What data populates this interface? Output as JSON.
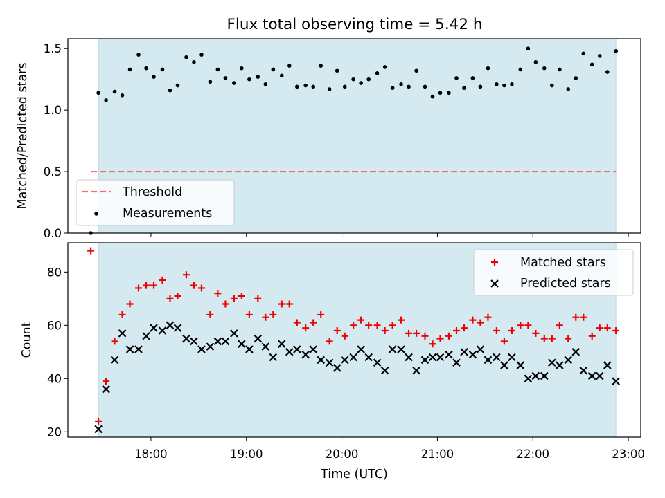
{
  "colors": {
    "shade": "#d4eaf0",
    "threshold": "#f07070",
    "measurement": "#000000",
    "matched": "#ee0000",
    "predicted": "#000000"
  },
  "chart_data": [
    {
      "type": "scatter",
      "title": "Flux total observing time = 5.42 h",
      "xlabel": "",
      "ylabel": "Matched/Predicted stars",
      "xlim": [
        17.13,
        23.13
      ],
      "ylim": [
        0,
        1.58
      ],
      "yticks": [
        0.0,
        0.5,
        1.0,
        1.5
      ],
      "ytick_labels": [
        "0.0",
        "0.5",
        "1.0",
        "1.5"
      ],
      "shaded_span": [
        17.45,
        22.87
      ],
      "threshold": {
        "name": "Threshold",
        "value": 0.5,
        "x_start": 17.37,
        "x_end": 22.87
      },
      "legend": {
        "position": "lower-left",
        "entries": [
          "Threshold",
          "Measurements"
        ]
      },
      "series": [
        {
          "name": "Measurements",
          "x": [
            17.37,
            17.45,
            17.53,
            17.62,
            17.7,
            17.78,
            17.87,
            17.95,
            18.03,
            18.12,
            18.2,
            18.28,
            18.37,
            18.45,
            18.53,
            18.62,
            18.7,
            18.78,
            18.87,
            18.95,
            19.03,
            19.12,
            19.2,
            19.28,
            19.37,
            19.45,
            19.53,
            19.62,
            19.7,
            19.78,
            19.87,
            19.95,
            20.03,
            20.12,
            20.2,
            20.28,
            20.37,
            20.45,
            20.53,
            20.62,
            20.7,
            20.78,
            20.87,
            20.95,
            21.03,
            21.12,
            21.2,
            21.28,
            21.37,
            21.45,
            21.53,
            21.62,
            21.7,
            21.78,
            21.87,
            21.95,
            22.03,
            22.12,
            22.2,
            22.28,
            22.37,
            22.45,
            22.53,
            22.62,
            22.7,
            22.78,
            22.87
          ],
          "y": [
            0.0,
            1.14,
            1.08,
            1.15,
            1.12,
            1.33,
            1.45,
            1.34,
            1.27,
            1.33,
            1.16,
            1.2,
            1.43,
            1.39,
            1.45,
            1.23,
            1.33,
            1.26,
            1.22,
            1.34,
            1.25,
            1.27,
            1.21,
            1.33,
            1.28,
            1.36,
            1.19,
            1.2,
            1.19,
            1.36,
            1.17,
            1.32,
            1.19,
            1.25,
            1.22,
            1.25,
            1.3,
            1.35,
            1.18,
            1.21,
            1.19,
            1.32,
            1.19,
            1.11,
            1.14,
            1.14,
            1.26,
            1.18,
            1.26,
            1.19,
            1.34,
            1.21,
            1.2,
            1.21,
            1.33,
            1.5,
            1.39,
            1.34,
            1.2,
            1.33,
            1.17,
            1.26,
            1.46,
            1.37,
            1.44,
            1.31,
            1.48
          ]
        }
      ]
    },
    {
      "type": "scatter",
      "title": "",
      "xlabel": "Time (UTC)",
      "ylabel": "Count",
      "xlim": [
        17.13,
        23.13
      ],
      "ylim": [
        18,
        91
      ],
      "yticks": [
        20,
        40,
        60,
        80
      ],
      "ytick_labels": [
        "20",
        "40",
        "60",
        "80"
      ],
      "xticks": [
        18,
        19,
        20,
        21,
        22,
        23
      ],
      "xtick_labels": [
        "18:00",
        "19:00",
        "20:00",
        "21:00",
        "22:00",
        "23:00"
      ],
      "shaded_span": [
        17.45,
        22.87
      ],
      "legend": {
        "position": "top-right",
        "entries": [
          "Matched stars",
          "Predicted stars"
        ]
      },
      "series": [
        {
          "name": "Matched stars",
          "x": [
            17.37,
            17.45,
            17.53,
            17.62,
            17.7,
            17.78,
            17.87,
            17.95,
            18.03,
            18.12,
            18.2,
            18.28,
            18.37,
            18.45,
            18.53,
            18.62,
            18.7,
            18.78,
            18.87,
            18.95,
            19.03,
            19.12,
            19.2,
            19.28,
            19.37,
            19.45,
            19.53,
            19.62,
            19.7,
            19.78,
            19.87,
            19.95,
            20.03,
            20.12,
            20.2,
            20.28,
            20.37,
            20.45,
            20.53,
            20.62,
            20.7,
            20.78,
            20.87,
            20.95,
            21.03,
            21.12,
            21.2,
            21.28,
            21.37,
            21.45,
            21.53,
            21.62,
            21.7,
            21.78,
            21.87,
            21.95,
            22.03,
            22.12,
            22.2,
            22.28,
            22.37,
            22.45,
            22.53,
            22.62,
            22.7,
            22.78,
            22.87
          ],
          "y": [
            88,
            24,
            39,
            54,
            64,
            68,
            74,
            75,
            75,
            77,
            70,
            71,
            79,
            75,
            74,
            64,
            72,
            68,
            70,
            71,
            64,
            70,
            63,
            64,
            68,
            68,
            61,
            59,
            61,
            64,
            54,
            58,
            56,
            60,
            62,
            60,
            60,
            58,
            60,
            62,
            57,
            57,
            56,
            53,
            55,
            56,
            58,
            59,
            62,
            61,
            63,
            58,
            54,
            58,
            60,
            60,
            57,
            55,
            55,
            60,
            55,
            63,
            63,
            56,
            59,
            59,
            58
          ]
        },
        {
          "name": "Predicted stars",
          "x": [
            17.45,
            17.53,
            17.62,
            17.7,
            17.78,
            17.87,
            17.95,
            18.03,
            18.12,
            18.2,
            18.28,
            18.37,
            18.45,
            18.53,
            18.62,
            18.7,
            18.78,
            18.87,
            18.95,
            19.03,
            19.12,
            19.2,
            19.28,
            19.37,
            19.45,
            19.53,
            19.62,
            19.7,
            19.78,
            19.87,
            19.95,
            20.03,
            20.12,
            20.2,
            20.28,
            20.37,
            20.45,
            20.53,
            20.62,
            20.7,
            20.78,
            20.87,
            20.95,
            21.03,
            21.12,
            21.2,
            21.28,
            21.37,
            21.45,
            21.53,
            21.62,
            21.7,
            21.78,
            21.87,
            21.95,
            22.03,
            22.12,
            22.2,
            22.28,
            22.37,
            22.45,
            22.53,
            22.62,
            22.7,
            22.78,
            22.87
          ],
          "y": [
            21,
            36,
            47,
            57,
            51,
            51,
            56,
            59,
            58,
            60,
            59,
            55,
            54,
            51,
            52,
            54,
            54,
            57,
            53,
            51,
            55,
            52,
            48,
            53,
            50,
            51,
            49,
            51,
            47,
            46,
            44,
            47,
            48,
            51,
            48,
            46,
            43,
            51,
            51,
            48,
            43,
            47,
            48,
            48,
            49,
            46,
            50,
            49,
            51,
            47,
            48,
            45,
            48,
            45,
            40,
            41,
            41,
            46,
            45,
            47,
            50,
            43,
            41,
            41,
            45,
            39
          ]
        }
      ]
    }
  ]
}
